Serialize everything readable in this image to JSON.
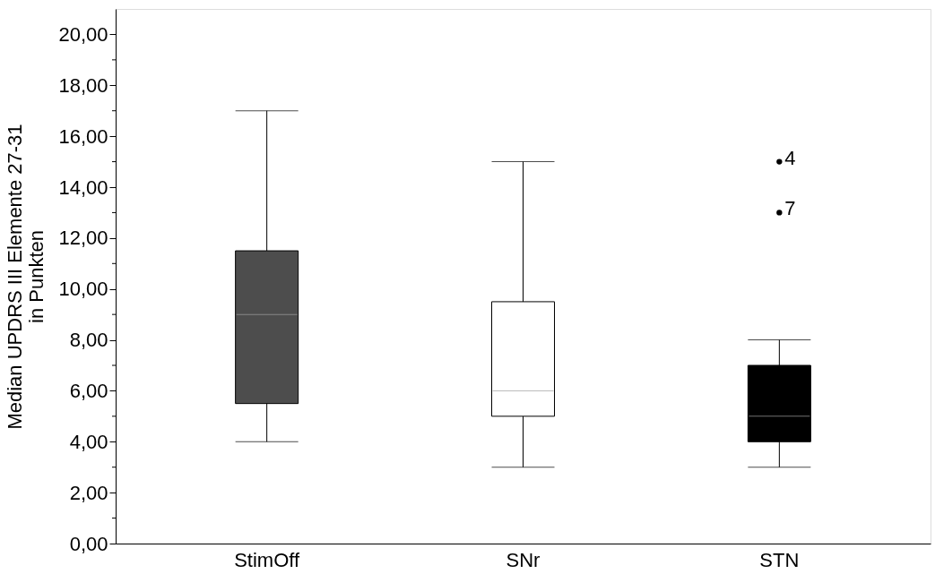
{
  "chart_data": {
    "type": "box",
    "ylabel": [
      "Median UPDRS III Elemente 27-31",
      "in Punkten"
    ],
    "categories": [
      "StimOff",
      "SNr",
      "STN"
    ],
    "colors": [
      "#4d4d4d",
      "#ffffff",
      "#000000"
    ],
    "boxes": [
      {
        "low": 4,
        "q1": 5.5,
        "median": 9,
        "q3": 11.5,
        "high": 17
      },
      {
        "low": 3,
        "q1": 5,
        "median": 6,
        "q3": 9.5,
        "high": 15
      },
      {
        "low": 3,
        "q1": 4,
        "median": 5,
        "q3": 7,
        "high": 8,
        "outliers": [
          15,
          13
        ]
      }
    ],
    "annotations": [
      "4",
      "7"
    ],
    "ylim": [
      0,
      21
    ],
    "yticks": [
      {
        "value": 0,
        "label": "0,00"
      },
      {
        "value": 1,
        "label": null
      },
      {
        "value": 2,
        "label": "2,00"
      },
      {
        "value": 3,
        "label": null
      },
      {
        "value": 4,
        "label": "4,00"
      },
      {
        "value": 5,
        "label": null
      },
      {
        "value": 6,
        "label": "6,00"
      },
      {
        "value": 7,
        "label": null
      },
      {
        "value": 8,
        "label": "8,00"
      },
      {
        "value": 9,
        "label": null
      },
      {
        "value": 10,
        "label": "10,00"
      },
      {
        "value": 11,
        "label": null
      },
      {
        "value": 12,
        "label": "12,00"
      },
      {
        "value": 13,
        "label": null
      },
      {
        "value": 14,
        "label": "14,00"
      },
      {
        "value": 15,
        "label": null
      },
      {
        "value": 16,
        "label": "16,00"
      },
      {
        "value": 17,
        "label": null
      },
      {
        "value": 18,
        "label": "18,00"
      },
      {
        "value": 19,
        "label": null
      },
      {
        "value": 20,
        "label": "20,00"
      }
    ],
    "grid": false
  }
}
